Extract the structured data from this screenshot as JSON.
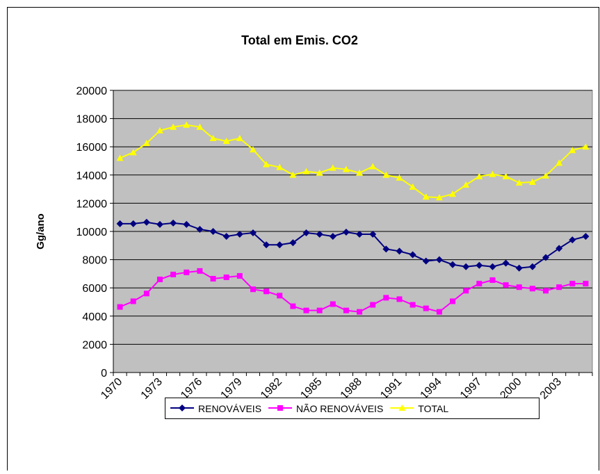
{
  "chart_data": {
    "type": "line",
    "title": "Total em Emis. CO2",
    "y_label": "Gg/ano",
    "categories": [
      "1970",
      null,
      null,
      "1973",
      null,
      null,
      "1976",
      null,
      null,
      "1979",
      null,
      null,
      "1982",
      null,
      null,
      "1985",
      null,
      null,
      "1988",
      null,
      null,
      "1991",
      null,
      null,
      "1994",
      null,
      null,
      "1997",
      null,
      null,
      "2000",
      null,
      null,
      "2003",
      null,
      null
    ],
    "series": [
      {
        "name": "RENOVÁVEIS",
        "color": "#000080",
        "marker": "diamond",
        "values": [
          10550,
          10550,
          10650,
          10500,
          10600,
          10500,
          10150,
          10000,
          9650,
          9800,
          9900,
          9050,
          9050,
          9200,
          9900,
          9800,
          9650,
          9950,
          9800,
          9800,
          8750,
          8600,
          8350,
          7900,
          8000,
          7650,
          7500,
          7600,
          7500,
          7750,
          7400,
          7500,
          8150,
          8800,
          9400,
          9650
        ]
      },
      {
        "name": "NÃO RENOVÁVEIS",
        "color": "#ff00ff",
        "marker": "square",
        "values": [
          4650,
          5050,
          5600,
          6600,
          6950,
          7100,
          7200,
          6650,
          6750,
          6850,
          5900,
          5750,
          5450,
          4700,
          4400,
          4400,
          4850,
          4400,
          4300,
          4800,
          5300,
          5200,
          4800,
          4550,
          4300,
          5050,
          5800,
          6300,
          6550,
          6200,
          6050,
          5950,
          5800,
          6050,
          6300,
          6300
        ]
      },
      {
        "name": "TOTAL",
        "color": "#ffff00",
        "marker": "triangle",
        "values": [
          15200,
          15600,
          16250,
          17150,
          17400,
          17550,
          17400,
          16600,
          16400,
          16600,
          15800,
          14750,
          14550,
          14000,
          14250,
          14150,
          14500,
          14400,
          14150,
          14600,
          14000,
          13800,
          13150,
          12450,
          12400,
          12650,
          13300,
          13900,
          14050,
          13900,
          13450,
          13500,
          13950,
          14850,
          15750,
          16000
        ]
      }
    ],
    "ylim": [
      0,
      20000
    ],
    "yticks": [
      0,
      2000,
      4000,
      6000,
      8000,
      10000,
      12000,
      14000,
      16000,
      18000,
      20000
    ],
    "grid": true,
    "legend": "bottom"
  }
}
